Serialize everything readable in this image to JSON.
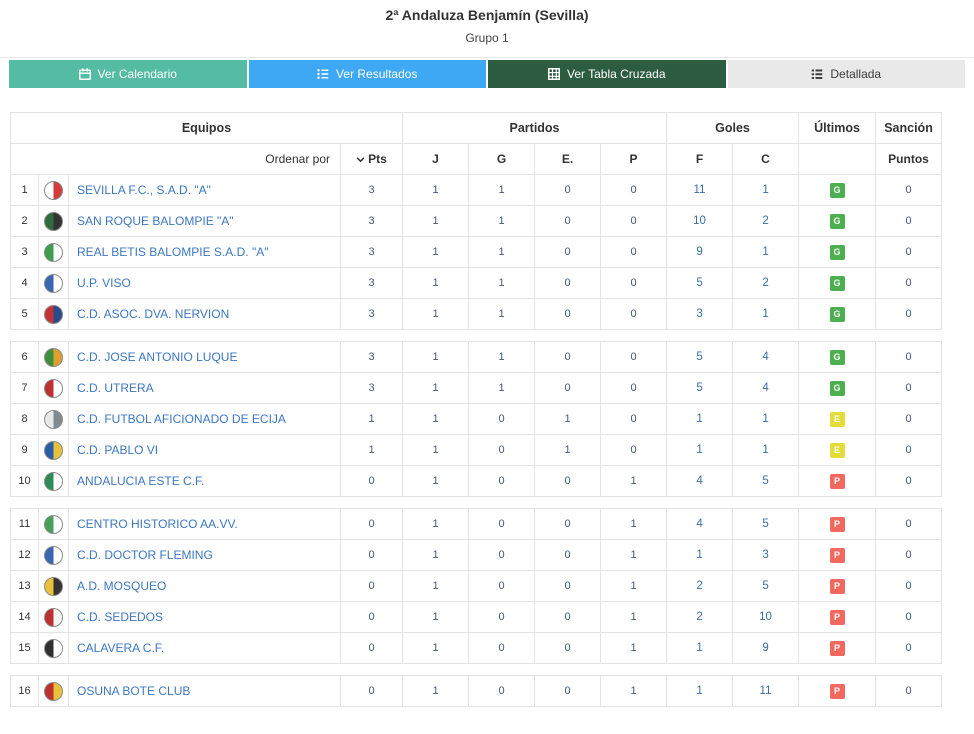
{
  "page": {
    "title": "2ª Andaluza Benjamín (Sevilla)",
    "subtitle": "Grupo 1"
  },
  "tabs": [
    {
      "label": "Ver Calendario",
      "icon": "calendar-icon",
      "color": "#53bca2",
      "text_color": "#ffffff"
    },
    {
      "label": "Ver Resultados",
      "icon": "results-list-icon",
      "color": "#3fa8f4",
      "text_color": "#ffffff"
    },
    {
      "label": "Ver Tabla Cruzada",
      "icon": "cross-table-icon",
      "color": "#2e5c41",
      "text_color": "#ffffff"
    },
    {
      "label": "Detallada",
      "icon": "detailed-list-icon",
      "color": "#e9e9e9",
      "text_color": "#3c3c3c"
    }
  ],
  "table": {
    "group_headers": {
      "equipos": "Equipos",
      "partidos": "Partidos",
      "goles": "Goles",
      "ultimos": "Últimos",
      "sancion": "Sanción"
    },
    "sub_header": {
      "sort_label": "Ordenar por",
      "sort_selected": "Pts",
      "cols": [
        "J",
        "G",
        "E.",
        "P",
        "F",
        "C"
      ],
      "sancion": "Puntos"
    },
    "badge_colors": {
      "G": "#4caf50",
      "E": "#e3dc39",
      "P": "#f1685f"
    },
    "group_breaks": [
      5,
      10,
      15
    ],
    "rows": [
      {
        "pos": 1,
        "team": "SEVILLA F.C., S.A.D. \"A\"",
        "pts": 3,
        "j": 1,
        "g": 1,
        "e": 0,
        "p": 0,
        "f": 11,
        "c": 1,
        "last": "G",
        "sancion": 0,
        "crest": [
          "#ffffff",
          "#d23b3b"
        ]
      },
      {
        "pos": 2,
        "team": "SAN ROQUE BALOMPIE \"A\"",
        "pts": 3,
        "j": 1,
        "g": 1,
        "e": 0,
        "p": 0,
        "f": 10,
        "c": 2,
        "last": "G",
        "sancion": 0,
        "crest": [
          "#2e6b3e",
          "#333333"
        ]
      },
      {
        "pos": 3,
        "team": "REAL BETIS BALOMPIE S.A.D. \"A\"",
        "pts": 3,
        "j": 1,
        "g": 1,
        "e": 0,
        "p": 0,
        "f": 9,
        "c": 1,
        "last": "G",
        "sancion": 0,
        "crest": [
          "#3f9e4d",
          "#ffffff"
        ]
      },
      {
        "pos": 4,
        "team": "U.P. VISO",
        "pts": 3,
        "j": 1,
        "g": 1,
        "e": 0,
        "p": 0,
        "f": 5,
        "c": 2,
        "last": "G",
        "sancion": 0,
        "crest": [
          "#3a67b1",
          "#ffffff"
        ]
      },
      {
        "pos": 5,
        "team": "C.D. ASOC. DVA. NERVION",
        "pts": 3,
        "j": 1,
        "g": 1,
        "e": 0,
        "p": 0,
        "f": 3,
        "c": 1,
        "last": "G",
        "sancion": 0,
        "crest": [
          "#c23333",
          "#2b4a8b"
        ]
      },
      {
        "pos": 6,
        "team": "C.D. JOSE ANTONIO LUQUE",
        "pts": 3,
        "j": 1,
        "g": 1,
        "e": 0,
        "p": 0,
        "f": 5,
        "c": 4,
        "last": "G",
        "sancion": 0,
        "crest": [
          "#3f8f3f",
          "#e0a030"
        ]
      },
      {
        "pos": 7,
        "team": "C.D. UTRERA",
        "pts": 3,
        "j": 1,
        "g": 1,
        "e": 0,
        "p": 0,
        "f": 5,
        "c": 4,
        "last": "G",
        "sancion": 0,
        "crest": [
          "#c03030",
          "#ffffff"
        ]
      },
      {
        "pos": 8,
        "team": "C.D. FUTBOL AFICIONADO DE ECIJA",
        "pts": 1,
        "j": 1,
        "g": 0,
        "e": 1,
        "p": 0,
        "f": 1,
        "c": 1,
        "last": "E",
        "sancion": 0,
        "crest": [
          "#e8e8e8",
          "#7f8c8d"
        ]
      },
      {
        "pos": 9,
        "team": "C.D. PABLO VI",
        "pts": 1,
        "j": 1,
        "g": 0,
        "e": 1,
        "p": 0,
        "f": 1,
        "c": 1,
        "last": "E",
        "sancion": 0,
        "crest": [
          "#2b5ca8",
          "#e8c23a"
        ]
      },
      {
        "pos": 10,
        "team": "ANDALUCIA ESTE C.F.",
        "pts": 0,
        "j": 1,
        "g": 0,
        "e": 0,
        "p": 1,
        "f": 4,
        "c": 5,
        "last": "P",
        "sancion": 0,
        "crest": [
          "#2e8b57",
          "#ffffff"
        ]
      },
      {
        "pos": 11,
        "team": "CENTRO HISTORICO AA.VV.",
        "pts": 0,
        "j": 1,
        "g": 0,
        "e": 0,
        "p": 1,
        "f": 4,
        "c": 5,
        "last": "P",
        "sancion": 0,
        "crest": [
          "#48a05a",
          "#ffffff"
        ]
      },
      {
        "pos": 12,
        "team": "C.D. DOCTOR FLEMING",
        "pts": 0,
        "j": 1,
        "g": 0,
        "e": 0,
        "p": 1,
        "f": 1,
        "c": 3,
        "last": "P",
        "sancion": 0,
        "crest": [
          "#3a67b1",
          "#ffffff"
        ]
      },
      {
        "pos": 13,
        "team": "A.D. MOSQUEO",
        "pts": 0,
        "j": 1,
        "g": 0,
        "e": 0,
        "p": 1,
        "f": 2,
        "c": 5,
        "last": "P",
        "sancion": 0,
        "crest": [
          "#e8c23a",
          "#333333"
        ]
      },
      {
        "pos": 14,
        "team": "C.D. SEDEDOS",
        "pts": 0,
        "j": 1,
        "g": 0,
        "e": 0,
        "p": 1,
        "f": 2,
        "c": 10,
        "last": "P",
        "sancion": 0,
        "crest": [
          "#c03030",
          "#f5f5f5"
        ]
      },
      {
        "pos": 15,
        "team": "CALAVERA C.F.",
        "pts": 0,
        "j": 1,
        "g": 0,
        "e": 0,
        "p": 1,
        "f": 1,
        "c": 9,
        "last": "P",
        "sancion": 0,
        "crest": [
          "#2f2f2f",
          "#ffffff"
        ]
      },
      {
        "pos": 16,
        "team": "OSUNA BOTE CLUB",
        "pts": 0,
        "j": 1,
        "g": 0,
        "e": 0,
        "p": 1,
        "f": 1,
        "c": 11,
        "last": "P",
        "sancion": 0,
        "crest": [
          "#c03030",
          "#e8c23a"
        ]
      }
    ]
  }
}
